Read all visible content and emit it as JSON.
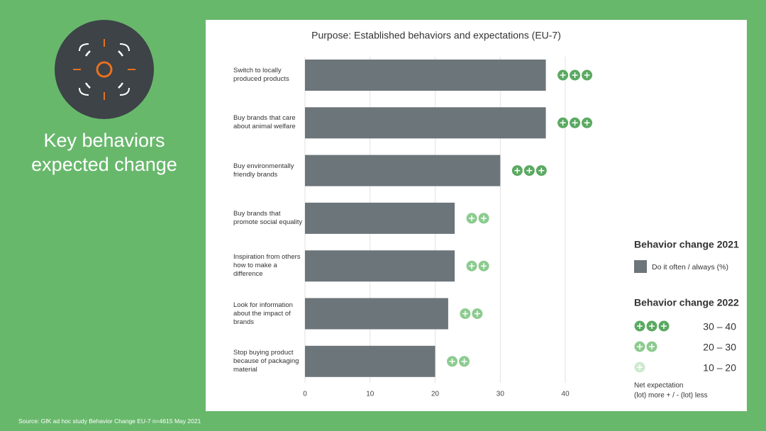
{
  "sidebar": {
    "title": [
      "Key behaviors",
      "expected change"
    ]
  },
  "source": "Source: GfK ad hoc study Behavior Change EU-7 n=4615 May 2021",
  "chart_data": {
    "type": "bar",
    "orientation": "horizontal",
    "title": "Purpose: Established behaviors and expectations (EU-7)",
    "categories": [
      "Switch to locally produced products",
      "Buy brands that care about animal welfare",
      "Buy environmentally friendly brands",
      "Buy brands that promote social equality",
      "Inspiration from others how to make a difference",
      "Look for information about the impact of brands",
      "Stop buying product because of packaging material"
    ],
    "series": [
      {
        "name": "Do it often / always (%)",
        "color": "#6c757a",
        "values": [
          37,
          37,
          30,
          23,
          23,
          22,
          20
        ]
      }
    ],
    "change_levels": [
      3,
      3,
      3,
      2,
      2,
      2,
      2
    ],
    "xlim": [
      0,
      45
    ],
    "xticks": [
      0,
      10,
      20,
      30,
      40
    ],
    "grid": true,
    "legend": {
      "title_2021": "Behavior change 2021",
      "title_2022": "Behavior change 2022",
      "levels": [
        {
          "count": 3,
          "label": "30 – 40",
          "color": "#5aa961"
        },
        {
          "count": 2,
          "label": "20 – 30",
          "color": "#8ccb8f"
        },
        {
          "count": 1,
          "label": "10 – 20",
          "color": "#cde9ce"
        }
      ],
      "note": [
        "Net expectation",
        "(lot) more + / - (lot) less"
      ]
    }
  }
}
